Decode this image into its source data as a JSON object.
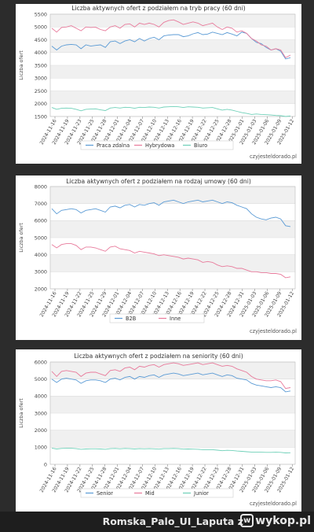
{
  "chart_data": [
    {
      "type": "line",
      "title": "Liczba aktywnych ofert z podziałem na tryb pracy (60 dni)",
      "ylabel": "Liczba ofert",
      "xlabel": "",
      "ylim": [
        1500,
        5500
      ],
      "yticks": [
        1500,
        2000,
        2500,
        3000,
        3500,
        4000,
        4500,
        5000,
        5500
      ],
      "x_ticks": [
        "2024-11-16",
        "2024-11-19",
        "2024-11-23",
        "2024-11-25",
        "2024-11-28",
        "2024-12-01",
        "2024-12-04",
        "2024-12-07",
        "2024-12-10",
        "2024-12-13",
        "2024-12-16",
        "2024-12-19",
        "2024-12-22",
        "2024-12-25",
        "2024-12-28",
        "2025-01-01",
        "2025-01-03",
        "2025-01-06",
        "2025-01-09",
        "2025-01-12"
      ],
      "grid": true,
      "legend": "bottom",
      "watermark": "czyjesteldorado.pl",
      "series": [
        {
          "name": "Praca zdalna",
          "color": "#5b9bd5",
          "values": [
            4250,
            4100,
            4250,
            4300,
            4320,
            4300,
            4150,
            4300,
            4250,
            4280,
            4300,
            4200,
            4420,
            4450,
            4350,
            4450,
            4500,
            4420,
            4550,
            4450,
            4550,
            4600,
            4500,
            4650,
            4680,
            4700,
            4700,
            4620,
            4650,
            4730,
            4780,
            4700,
            4720,
            4800,
            4750,
            4700,
            4780,
            4720,
            4650,
            4800,
            4750,
            4550,
            4400,
            4350,
            4200,
            4100,
            4150,
            4050,
            3750,
            3800
          ]
        },
        {
          "name": "Hybrydowa",
          "color": "#e87a9b",
          "values": [
            4950,
            4800,
            4980,
            5000,
            5050,
            4950,
            4850,
            5000,
            4980,
            4990,
            4900,
            4850,
            5000,
            5050,
            4950,
            5100,
            5120,
            5000,
            5150,
            5100,
            5150,
            5100,
            5000,
            5180,
            5250,
            5280,
            5200,
            5100,
            5150,
            5200,
            5150,
            5050,
            5100,
            5150,
            5000,
            4900,
            5000,
            4950,
            4800,
            4850,
            4750,
            4550,
            4450,
            4300,
            4250,
            4100,
            4150,
            4100,
            3800,
            3900
          ]
        },
        {
          "name": "Biuro",
          "color": "#6fd0b8",
          "values": [
            1850,
            1780,
            1820,
            1830,
            1820,
            1780,
            1720,
            1780,
            1790,
            1800,
            1760,
            1730,
            1830,
            1850,
            1830,
            1860,
            1850,
            1820,
            1860,
            1850,
            1870,
            1860,
            1830,
            1870,
            1880,
            1890,
            1880,
            1850,
            1880,
            1870,
            1860,
            1830,
            1840,
            1850,
            1800,
            1750,
            1780,
            1750,
            1700,
            1650,
            1620,
            1580,
            1600,
            1580,
            1570,
            1560,
            1540,
            1530,
            1500,
            1520
          ]
        }
      ]
    },
    {
      "type": "line",
      "title": "Liczba aktywnych ofert z podziałem na rodzaj umowy (60 dni)",
      "ylabel": "Liczba ofert",
      "xlabel": "",
      "ylim": [
        2000,
        8000
      ],
      "yticks": [
        2000,
        3000,
        4000,
        5000,
        6000,
        7000,
        8000
      ],
      "x_ticks": [
        "2024-11-16",
        "2024-11-19",
        "2024-11-22",
        "2024-11-25",
        "2024-11-29",
        "2024-12-01",
        "2024-12-04",
        "2024-12-07",
        "2024-12-10",
        "2024-12-13",
        "2024-12-16",
        "2024-12-19",
        "2024-12-22",
        "2024-12-25",
        "2024-12-28",
        "2024-12-31",
        "2025-01-03",
        "2025-01-06",
        "2025-01-09",
        "2025-01-12"
      ],
      "grid": true,
      "legend": "bottom",
      "watermark": "czyjesteldorado.pl",
      "series": [
        {
          "name": "B2B",
          "color": "#5b9bd5",
          "values": [
            6700,
            6400,
            6600,
            6650,
            6700,
            6650,
            6450,
            6600,
            6650,
            6700,
            6600,
            6500,
            6800,
            6850,
            6750,
            6900,
            6950,
            6800,
            6950,
            6900,
            7000,
            7050,
            6900,
            7100,
            7150,
            7200,
            7100,
            7000,
            7100,
            7150,
            7200,
            7100,
            7150,
            7200,
            7100,
            7000,
            7100,
            7050,
            6900,
            6800,
            6700,
            6400,
            6200,
            6100,
            6050,
            6150,
            6200,
            6100,
            5700,
            5650
          ]
        },
        {
          "name": "Inne",
          "color": "#e87a9b",
          "values": [
            4600,
            4400,
            4600,
            4650,
            4650,
            4550,
            4300,
            4450,
            4450,
            4400,
            4300,
            4200,
            4450,
            4500,
            4350,
            4300,
            4250,
            4100,
            4200,
            4150,
            4100,
            4050,
            3950,
            4000,
            3950,
            3900,
            3850,
            3750,
            3800,
            3750,
            3700,
            3550,
            3600,
            3550,
            3400,
            3300,
            3350,
            3300,
            3200,
            3200,
            3100,
            3000,
            3000,
            2950,
            2950,
            2900,
            2900,
            2850,
            2650,
            2700
          ]
        }
      ]
    },
    {
      "type": "line",
      "title": "Liczba aktywnych ofert z podziałem na seniority (60 dni)",
      "ylabel": "Liczba ofert",
      "xlabel": "",
      "ylim": [
        0,
        6000
      ],
      "yticks": [
        0,
        1000,
        2000,
        3000,
        4000,
        5000,
        6000
      ],
      "x_ticks": [
        "2024-11-16",
        "2024-11-19",
        "2024-11-22",
        "2024-11-25",
        "2024-11-28",
        "2024-12-01",
        "2024-12-04",
        "2024-12-07",
        "2024-12-10",
        "2024-12-13",
        "2024-12-16",
        "2024-12-19",
        "2024-12-22",
        "2024-12-25",
        "2024-12-28",
        "2024-12-31",
        "2025-01-03",
        "2025-01-06",
        "2025-01-09",
        "2025-01-12"
      ],
      "grid": true,
      "legend": "bottom",
      "watermark": "czyjesteldorado.pl",
      "series": [
        {
          "name": "Senior",
          "color": "#5b9bd5",
          "values": [
            5000,
            4800,
            5000,
            5050,
            5000,
            4950,
            4750,
            4900,
            4950,
            4950,
            4900,
            4800,
            5000,
            5050,
            4950,
            5100,
            5150,
            5000,
            5150,
            5100,
            5200,
            5250,
            5100,
            5250,
            5300,
            5350,
            5300,
            5200,
            5250,
            5300,
            5350,
            5250,
            5300,
            5350,
            5250,
            5150,
            5250,
            5200,
            5050,
            5000,
            4950,
            4750,
            4650,
            4600,
            4550,
            4500,
            4550,
            4500,
            4250,
            4300
          ]
        },
        {
          "name": "Mid",
          "color": "#e87a9b",
          "values": [
            5450,
            5150,
            5450,
            5500,
            5450,
            5400,
            5150,
            5350,
            5400,
            5400,
            5300,
            5200,
            5500,
            5550,
            5450,
            5650,
            5700,
            5550,
            5750,
            5700,
            5800,
            5850,
            5700,
            5850,
            5900,
            5950,
            5900,
            5800,
            5850,
            5900,
            5950,
            5850,
            5900,
            5950,
            5850,
            5750,
            5800,
            5750,
            5600,
            5500,
            5400,
            5150,
            5000,
            4950,
            4900,
            4900,
            4950,
            4850,
            4450,
            4500
          ]
        },
        {
          "name": "Junior",
          "color": "#6fd0b8",
          "values": [
            950,
            900,
            930,
            940,
            940,
            920,
            880,
            900,
            910,
            910,
            900,
            880,
            920,
            930,
            910,
            930,
            920,
            900,
            920,
            910,
            920,
            910,
            890,
            920,
            920,
            930,
            920,
            890,
            900,
            890,
            880,
            860,
            860,
            860,
            830,
            800,
            820,
            810,
            780,
            760,
            740,
            720,
            720,
            710,
            700,
            700,
            710,
            700,
            670,
            680
          ]
        }
      ]
    }
  ],
  "footer": {
    "text": "Romska_Palo_UI_Laputa z",
    "logo_text": "wykop.pl",
    "logo_icon": "wykop-logo-icon"
  }
}
